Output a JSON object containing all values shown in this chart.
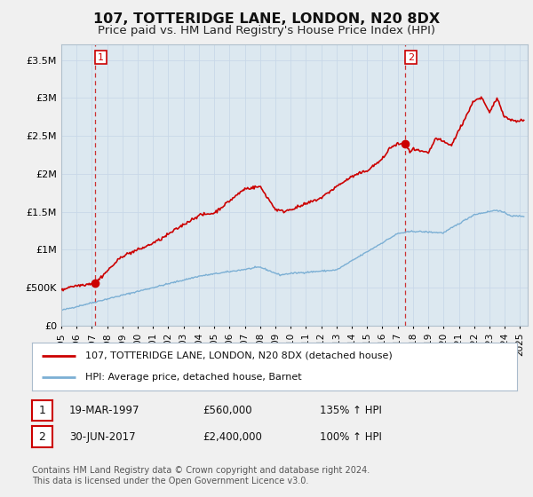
{
  "title": "107, TOTTERIDGE LANE, LONDON, N20 8DX",
  "subtitle": "Price paid vs. HM Land Registry's House Price Index (HPI)",
  "title_fontsize": 11.5,
  "subtitle_fontsize": 9.5,
  "background_color": "#f0f0f0",
  "plot_bg_color": "#dce8f0",
  "xlabel": "",
  "ylabel": "",
  "ylim": [
    0,
    3700000
  ],
  "xlim_start": 1995.0,
  "xlim_end": 2025.5,
  "yticks": [
    0,
    500000,
    1000000,
    1500000,
    2000000,
    2500000,
    3000000,
    3500000
  ],
  "ytick_labels": [
    "£0",
    "£500K",
    "£1M",
    "£1.5M",
    "£2M",
    "£2.5M",
    "£3M",
    "£3.5M"
  ],
  "xtick_years": [
    1995,
    1996,
    1997,
    1998,
    1999,
    2000,
    2001,
    2002,
    2003,
    2004,
    2005,
    2006,
    2007,
    2008,
    2009,
    2010,
    2011,
    2012,
    2013,
    2014,
    2015,
    2016,
    2017,
    2018,
    2019,
    2020,
    2021,
    2022,
    2023,
    2024,
    2025
  ],
  "sale1_x": 1997.22,
  "sale1_y": 560000,
  "sale2_x": 2017.5,
  "sale2_y": 2400000,
  "vline1_x": 1997.22,
  "vline2_x": 2017.5,
  "legend_label_red": "107, TOTTERIDGE LANE, LONDON, N20 8DX (detached house)",
  "legend_label_blue": "HPI: Average price, detached house, Barnet",
  "footnote": "Contains HM Land Registry data © Crown copyright and database right 2024.\nThis data is licensed under the Open Government Licence v3.0.",
  "red_color": "#cc0000",
  "blue_color": "#7bafd4",
  "vline_color": "#cc3333",
  "dot_color": "#cc0000",
  "grid_color": "#c8d8e8",
  "row1_num": "1",
  "row1_date": "19-MAR-1997",
  "row1_price": "£560,000",
  "row1_hpi": "135% ↑ HPI",
  "row2_num": "2",
  "row2_date": "30-JUN-2017",
  "row2_price": "£2,400,000",
  "row2_hpi": "100% ↑ HPI"
}
